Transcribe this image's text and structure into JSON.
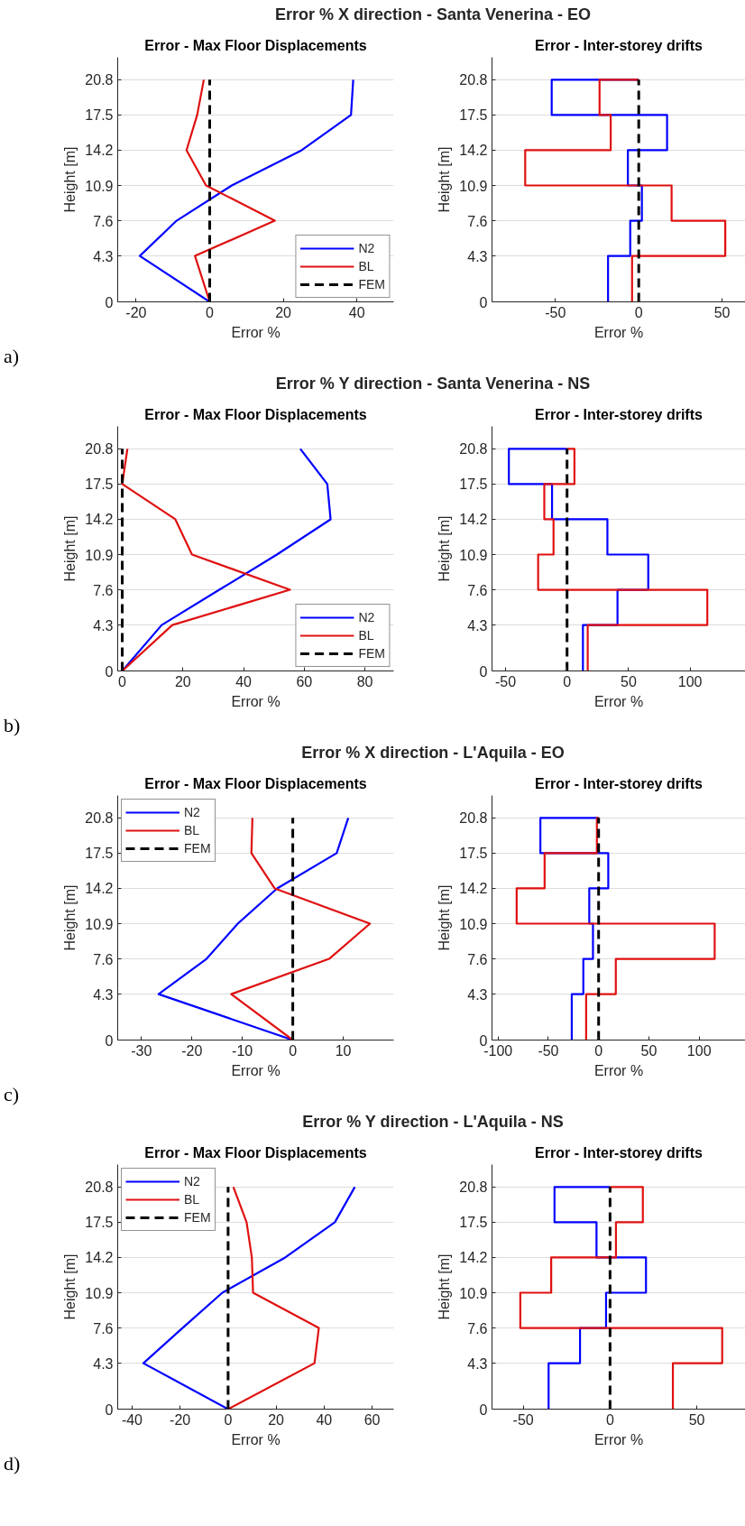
{
  "chart_data": [
    {
      "type": "line",
      "title": "Error - Max Floor Displacements",
      "xlabel": "Error %",
      "ylabel": "Height [m]",
      "xlim": [
        -25,
        50
      ],
      "xticks": [
        -20,
        0,
        20,
        40
      ],
      "ylim": [
        0,
        22.9
      ],
      "yticks": [
        0,
        4.3,
        7.6,
        10.9,
        14.2,
        17.5,
        20.8
      ],
      "grid": "y",
      "legend": "bottom right",
      "annotations": [
        "Error % X direction - Santa Venerina - EO",
        "a)"
      ],
      "series": [
        {
          "name": "N2",
          "color": "#0000ff",
          "x": [
            0,
            -19,
            -9,
            6,
            25,
            38.4,
            39
          ],
          "values": [
            0,
            4.3,
            7.6,
            10.9,
            14.2,
            17.5,
            20.8
          ]
        },
        {
          "name": "BL",
          "color": "#e01010",
          "x": [
            0,
            -4,
            17.7,
            -1,
            -6.3,
            -3.4,
            -1.6
          ],
          "values": [
            0,
            4.3,
            7.6,
            10.9,
            14.2,
            17.5,
            20.8
          ]
        },
        {
          "name": "FEM",
          "color": "#000000",
          "line_style": "dashed",
          "x": [
            0,
            0
          ],
          "values": [
            0,
            20.8
          ]
        }
      ]
    },
    {
      "type": "step",
      "title": "Error - Inter-storey drifts",
      "xlabel": "Error %",
      "ylabel": "Height [m]",
      "xlim": [
        -88,
        64
      ],
      "xticks": [
        -50,
        0,
        50
      ],
      "ylim": [
        0,
        22.9
      ],
      "yticks": [
        0,
        4.3,
        7.6,
        10.9,
        14.2,
        17.5,
        20.8
      ],
      "grid": "y",
      "series": [
        {
          "color": "#0000ff",
          "x": [
            -18.4,
            -5.1,
            1.9,
            -6.5,
            17,
            -52.2,
            0
          ],
          "values": [
            0,
            4.3,
            7.6,
            10.9,
            14.2,
            17.5,
            20.8
          ]
        },
        {
          "color": "#e01010",
          "x": [
            -4,
            51.9,
            19.7,
            -68.1,
            -16.8,
            -23.5,
            0
          ],
          "values": [
            0,
            4.3,
            7.6,
            10.9,
            14.2,
            17.5,
            20.8
          ]
        },
        {
          "type": "line",
          "color": "#000000",
          "line_style": "dashed",
          "x": [
            0,
            0
          ],
          "values": [
            0,
            20.8
          ]
        }
      ]
    },
    {
      "type": "line",
      "title": "Error - Max Floor Displacements",
      "xlabel": "Error %",
      "ylabel": "Height [m]",
      "xlim": [
        -1.5,
        89.5
      ],
      "xticks": [
        0,
        20,
        40,
        60,
        80
      ],
      "ylim": [
        0,
        22.9
      ],
      "yticks": [
        0,
        4.3,
        7.6,
        10.9,
        14.2,
        17.5,
        20.8
      ],
      "grid": "y",
      "legend": "bottom right",
      "annotations": [
        "Error % Y direction - Santa Venerina - NS",
        "b)"
      ],
      "series": [
        {
          "name": "N2",
          "color": "#0000ff",
          "x": [
            0,
            13,
            32,
            51,
            68.7,
            67.6,
            58.7
          ],
          "values": [
            0,
            4.3,
            7.6,
            10.9,
            14.2,
            17.5,
            20.8
          ]
        },
        {
          "name": "BL",
          "color": "#e01010",
          "x": [
            0,
            16.5,
            55.3,
            23,
            17.5,
            0,
            1.7
          ],
          "values": [
            0,
            4.3,
            7.6,
            10.9,
            14.2,
            17.5,
            20.8
          ]
        },
        {
          "name": "FEM",
          "color": "#000000",
          "line_style": "dashed",
          "x": [
            0,
            0
          ],
          "values": [
            0,
            20.8
          ]
        }
      ]
    },
    {
      "type": "step",
      "title": "Error - Inter-storey drifts",
      "xlabel": "Error %",
      "ylabel": "Height [m]",
      "xlim": [
        -61,
        145
      ],
      "xticks": [
        -50,
        0,
        50,
        100
      ],
      "ylim": [
        0,
        22.9
      ],
      "yticks": [
        0,
        4.3,
        7.6,
        10.9,
        14.2,
        17.5,
        20.8
      ],
      "grid": "y",
      "series": [
        {
          "color": "#0000ff",
          "x": [
            12.9,
            41,
            66,
            32.8,
            -12.2,
            -47.3,
            0
          ],
          "values": [
            0,
            4.3,
            7.6,
            10.9,
            14.2,
            17.5,
            20.8
          ]
        },
        {
          "color": "#e01010",
          "x": [
            16.8,
            114,
            -23.5,
            -11,
            -18.5,
            6,
            0
          ],
          "values": [
            0,
            4.3,
            7.6,
            10.9,
            14.2,
            17.5,
            20.8
          ]
        },
        {
          "type": "line",
          "color": "#000000",
          "line_style": "dashed",
          "x": [
            0,
            0
          ],
          "values": [
            0,
            20.8
          ]
        }
      ]
    },
    {
      "type": "line",
      "title": "Error - Max Floor Displacements",
      "xlabel": "Error %",
      "ylabel": "Height [m]",
      "xlim": [
        -34.7,
        20
      ],
      "xticks": [
        -30,
        -20,
        -10,
        0,
        10
      ],
      "ylim": [
        0,
        22.9
      ],
      "yticks": [
        0,
        4.3,
        7.6,
        10.9,
        14.2,
        17.5,
        20.8
      ],
      "grid": "y",
      "legend": "top left",
      "annotations": [
        "Error % X direction - L'Aquila - EO",
        "c)"
      ],
      "series": [
        {
          "name": "N2",
          "color": "#0000ff",
          "x": [
            0,
            -26.6,
            -17.1,
            -10.9,
            -3.1,
            8.7,
            11
          ],
          "values": [
            0,
            4.3,
            7.6,
            10.9,
            14.2,
            17.5,
            20.8
          ]
        },
        {
          "name": "BL",
          "color": "#e01010",
          "x": [
            0,
            -12.2,
            7.2,
            15.3,
            -3.6,
            -8.2,
            -8
          ],
          "values": [
            0,
            4.3,
            7.6,
            10.9,
            14.2,
            17.5,
            20.8
          ]
        },
        {
          "name": "FEM",
          "color": "#000000",
          "line_style": "dashed",
          "x": [
            0,
            0
          ],
          "values": [
            0,
            20.8
          ]
        }
      ]
    },
    {
      "type": "step",
      "title": "Error - Inter-storey drifts",
      "xlabel": "Error %",
      "ylabel": "Height [m]",
      "xlim": [
        -106,
        146
      ],
      "xticks": [
        -100,
        -50,
        0,
        50,
        100
      ],
      "ylim": [
        0,
        22.9
      ],
      "yticks": [
        0,
        4.3,
        7.6,
        10.9,
        14.2,
        17.5,
        20.8
      ],
      "grid": "y",
      "series": [
        {
          "color": "#0000ff",
          "x": [
            -26.7,
            -15.2,
            -5.6,
            -9.3,
            9.6,
            -57.9,
            0
          ],
          "values": [
            0,
            4.3,
            7.6,
            10.9,
            14.2,
            17.5,
            20.8
          ]
        },
        {
          "color": "#e01010",
          "x": [
            -12.4,
            17.1,
            115.4,
            -81.5,
            -53.7,
            -1.7,
            0
          ],
          "values": [
            0,
            4.3,
            7.6,
            10.9,
            14.2,
            17.5,
            20.8
          ]
        },
        {
          "type": "line",
          "color": "#000000",
          "line_style": "dashed",
          "x": [
            0,
            0
          ],
          "values": [
            0,
            20.8
          ]
        }
      ]
    },
    {
      "type": "line",
      "title": "Error - Max Floor Displacements",
      "xlabel": "Error %",
      "ylabel": "Height [m]",
      "xlim": [
        -46,
        69
      ],
      "xticks": [
        -40,
        -20,
        0,
        20,
        40,
        60
      ],
      "ylim": [
        0,
        22.9
      ],
      "yticks": [
        0,
        4.3,
        7.6,
        10.9,
        14.2,
        17.5,
        20.8
      ],
      "grid": "y",
      "legend": "top left",
      "annotations": [
        "Error % Y direction - L'Aquila - NS",
        "d)"
      ],
      "series": [
        {
          "name": "N2",
          "color": "#0000ff",
          "x": [
            0,
            -35.3,
            -19,
            -2.4,
            23.8,
            44.5,
            52.8
          ],
          "values": [
            0,
            4.3,
            7.6,
            10.9,
            14.2,
            17.5,
            20.8
          ]
        },
        {
          "name": "BL",
          "color": "#e01010",
          "x": [
            0,
            36,
            37.8,
            10.4,
            9.9,
            7.7,
            2.2
          ],
          "values": [
            0,
            4.3,
            7.6,
            10.9,
            14.2,
            17.5,
            20.8
          ]
        },
        {
          "name": "FEM",
          "color": "#000000",
          "line_style": "dashed",
          "x": [
            0,
            0
          ],
          "values": [
            0,
            20.8
          ]
        }
      ]
    },
    {
      "type": "step",
      "title": "Error - Inter-storey drifts",
      "xlabel": "Error %",
      "ylabel": "Height [m]",
      "xlim": [
        -68,
        78
      ],
      "xticks": [
        -50,
        0,
        50
      ],
      "ylim": [
        0,
        22.9
      ],
      "yticks": [
        0,
        4.3,
        7.6,
        10.9,
        14.2,
        17.5,
        20.8
      ],
      "grid": "y",
      "series": [
        {
          "color": "#0000ff",
          "x": [
            -35.4,
            -17.3,
            -2.3,
            20.7,
            -7.8,
            -32,
            0
          ],
          "values": [
            0,
            4.3,
            7.6,
            10.9,
            14.2,
            17.5,
            20.8
          ]
        },
        {
          "color": "#e01010",
          "x": [
            36.2,
            64.6,
            -51.7,
            -33.9,
            3.4,
            18.9,
            0
          ],
          "values": [
            0,
            4.3,
            7.6,
            10.9,
            14.2,
            17.5,
            20.8
          ]
        },
        {
          "type": "line",
          "color": "#000000",
          "line_style": "dashed",
          "x": [
            0,
            0
          ],
          "values": [
            0,
            20.8
          ]
        }
      ]
    }
  ]
}
